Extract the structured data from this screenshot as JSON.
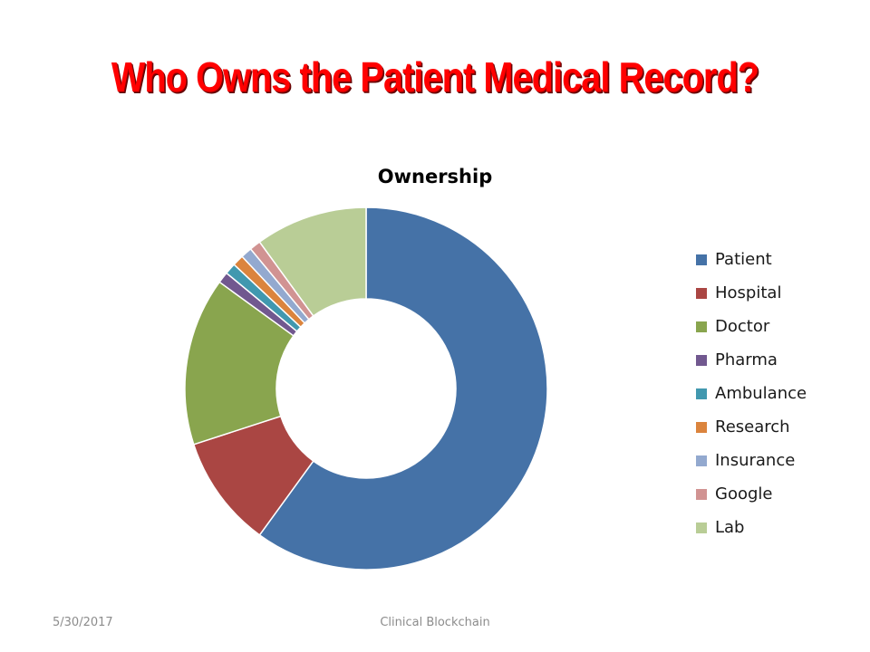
{
  "slide": {
    "title": "Who Owns the Patient Medical Record?",
    "footer_date": "5/30/2017",
    "footer_center": "Clinical Blockchain"
  },
  "chart_data": {
    "type": "pie",
    "variant": "doughnut",
    "title": "Ownership",
    "legend_position": "right",
    "start_angle_deg": 0,
    "direction": "clockwise",
    "categories": [
      "Patient",
      "Hospital",
      "Doctor",
      "Pharma",
      "Ambulance",
      "Research",
      "Insurance",
      "Google",
      "Lab"
    ],
    "values": [
      60,
      10,
      15,
      1,
      1,
      1,
      1,
      1,
      10
    ],
    "colors": [
      "#4572a7",
      "#aa4643",
      "#89a54e",
      "#71588f",
      "#4198af",
      "#db843d",
      "#93a9cf",
      "#d19392",
      "#b9cd96"
    ]
  }
}
